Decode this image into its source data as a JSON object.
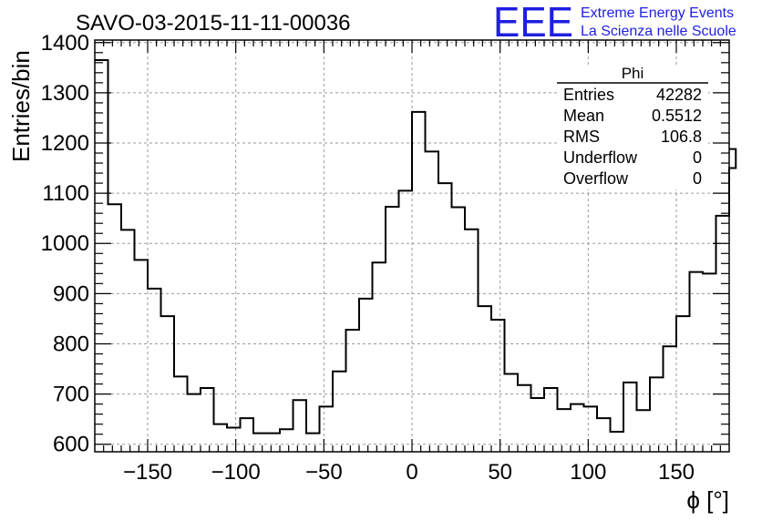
{
  "chart_data": {
    "type": "histogram",
    "title": "SAVO-03-2015-11-11-00036",
    "xlabel": "ϕ [°]",
    "ylabel": "Entries/bin",
    "xlim": [
      -180,
      180
    ],
    "ylim": [
      585,
      1405
    ],
    "grid": true,
    "x_ticks": [
      -150,
      -100,
      -50,
      0,
      50,
      100,
      150
    ],
    "x_tick_labels": [
      "−150",
      "−100",
      "−50",
      "0",
      "50",
      "100",
      "150"
    ],
    "y_ticks": [
      600,
      700,
      800,
      900,
      1000,
      1100,
      1200,
      1300,
      1400
    ],
    "y_tick_labels": [
      "600",
      "700",
      "800",
      "900",
      "1000",
      "1100",
      "1200",
      "1300",
      "1400"
    ],
    "bin_width": 7.5,
    "bin_low_edges": [
      -180,
      -172.5,
      -165,
      -157.5,
      -150,
      -142.5,
      -135,
      -127.5,
      -120,
      -112.5,
      -105,
      -97.5,
      -90,
      -82.5,
      -75,
      -67.5,
      -60,
      -52.5,
      -45,
      -37.5,
      -30,
      -22.5,
      -15,
      -7.5,
      0,
      7.5,
      15,
      22.5,
      30,
      37.5,
      45,
      52.5,
      60,
      67.5,
      75,
      82.5,
      90,
      97.5,
      105,
      112.5,
      120,
      127.5,
      135,
      142.5,
      150,
      157.5,
      165,
      172.5
    ],
    "values": [
      1365,
      1078,
      1027,
      967,
      910,
      855,
      735,
      700,
      712,
      640,
      633,
      652,
      622,
      622,
      630,
      688,
      622,
      675,
      745,
      828,
      890,
      962,
      1073,
      1105,
      1262,
      1183,
      1120,
      1072,
      1028,
      875,
      848,
      740,
      718,
      692,
      712,
      670,
      680,
      675,
      652,
      625,
      723,
      668,
      733,
      795,
      855,
      943,
      940,
      1055
    ],
    "last_partial_bin_value": 1150,
    "last_partial_bin_value_2": 1188
  },
  "stats_box": {
    "title": "Phi",
    "rows": [
      {
        "label": "Entries",
        "value": "42282"
      },
      {
        "label": "Mean",
        "value": "0.5512"
      },
      {
        "label": "RMS",
        "value": "106.8"
      },
      {
        "label": "Underflow",
        "value": "0"
      },
      {
        "label": "Overflow",
        "value": "0"
      }
    ]
  },
  "logo": {
    "mark": "EEE",
    "line1": "Extreme Energy Events",
    "line2": "La Scienza nelle Scuole",
    "color": "#1f1fe0"
  }
}
